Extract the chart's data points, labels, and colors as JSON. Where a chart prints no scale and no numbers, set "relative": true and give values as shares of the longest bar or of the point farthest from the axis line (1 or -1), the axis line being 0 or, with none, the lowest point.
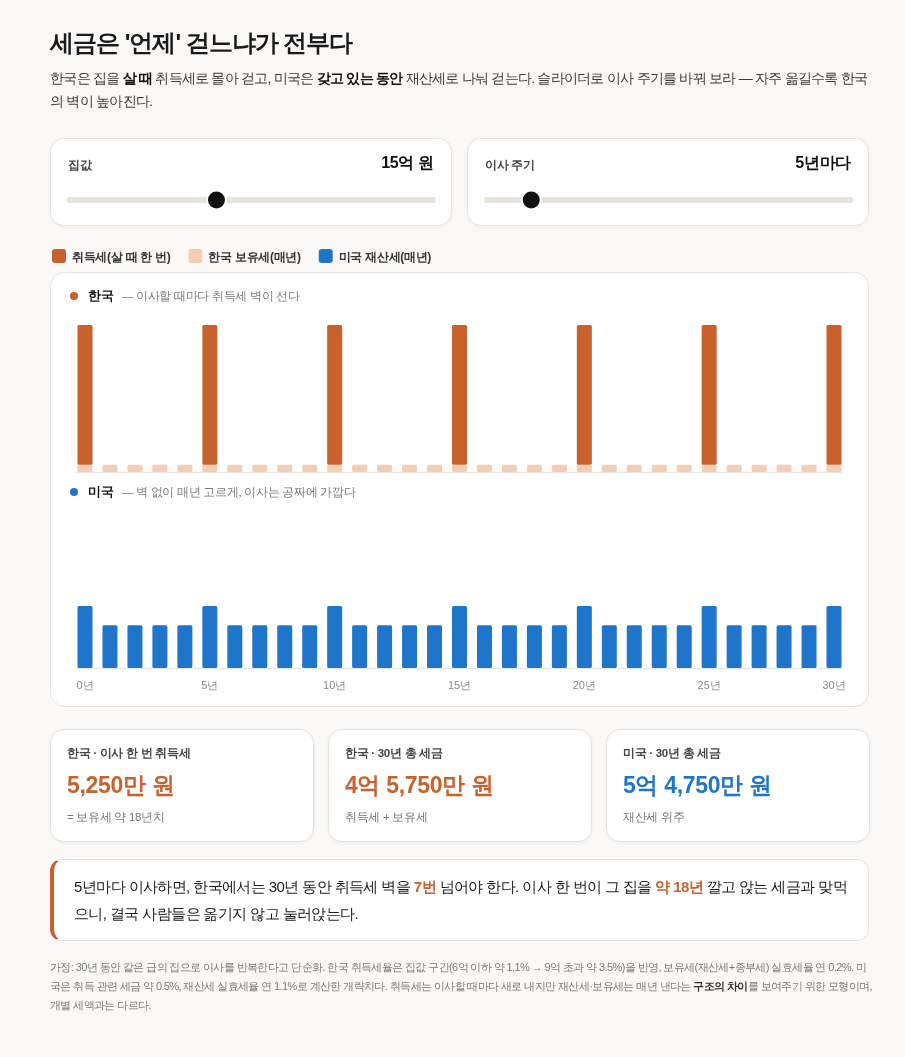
{
  "chart_data": [
    {
      "type": "other",
      "title": "세금은 '언제' 걷느냐가 전부다",
      "subtitle": "한국은 집을 **살 때** 취득세로 몰아 걷고, 미국은 **갖고 있는 동안** 재산세로 나눠 걷는다. 슬라이더로 이사 주기를 바꿔 보라 — 자주 옮길수록 한국의 벽이 높아진다.",
      "annotations": [
        "집값",
        "15억 원",
        "이사 주기",
        "5년마다"
      ]
    },
    {
      "type": "bar",
      "title": "한국",
      "subtitle": "— 이사할 때마다 취득세 벽이 선다",
      "categories": [
        null,
        null,
        null,
        null,
        null,
        null,
        null,
        null,
        null,
        null,
        null,
        null,
        null,
        null,
        null,
        null,
        null,
        null,
        null,
        null,
        null,
        null,
        null,
        null,
        null,
        null,
        null,
        null,
        null,
        null,
        null
      ],
      "stacked": true,
      "relative": true,
      "legend": "top",
      "series": [
        {
          "name": "한국 보유세(매년)",
          "color": "#f2cfb4",
          "values": [
            0.05,
            0.05,
            0.05,
            0.05,
            0.05,
            0.05,
            0.05,
            0.05,
            0.05,
            0.05,
            0.05,
            0.05,
            0.05,
            0.05,
            0.05,
            0.05,
            0.05,
            0.05,
            0.05,
            0.05,
            0.05,
            0.05,
            0.05,
            0.05,
            0.05,
            0.05,
            0.05,
            0.05,
            0.05,
            0.05,
            0.05
          ]
        },
        {
          "name": "취득세(살 때 한 번)",
          "color": "#c8612b",
          "values": [
            0.95,
            null,
            null,
            null,
            null,
            0.95,
            null,
            null,
            null,
            null,
            0.95,
            null,
            null,
            null,
            null,
            0.95,
            null,
            null,
            null,
            null,
            0.95,
            null,
            null,
            null,
            null,
            0.95,
            null,
            null,
            null,
            null,
            0.95
          ]
        }
      ]
    },
    {
      "type": "bar",
      "title": "미국",
      "subtitle": "— 벽 없이 매년 고르게, 이사는 공짜에 가깝다",
      "categories": [
        "0년",
        null,
        null,
        null,
        null,
        "5년",
        null,
        null,
        null,
        null,
        "10년",
        null,
        null,
        null,
        null,
        "15년",
        null,
        null,
        null,
        null,
        "20년",
        null,
        null,
        null,
        null,
        "25년",
        null,
        null,
        null,
        null,
        "30년"
      ],
      "relative": true,
      "legend": "top",
      "tick_labels": "x",
      "series": [
        {
          "name": "미국 재산세(매년)",
          "color": "#1f75c9",
          "values": [
            1,
            0.69,
            0.69,
            0.69,
            0.69,
            1,
            0.69,
            0.69,
            0.69,
            0.69,
            1,
            0.69,
            0.69,
            0.69,
            0.69,
            1,
            0.69,
            0.69,
            0.69,
            0.69,
            1,
            0.69,
            0.69,
            0.69,
            0.69,
            1,
            0.69,
            0.69,
            0.69,
            0.69,
            1
          ]
        }
      ]
    },
    {
      "type": "other",
      "annotations": [
        "한국 · 이사 한 번 취득세",
        "5,250만 원",
        "= 보유세 약 18년치",
        "한국 · 30년 총 세금",
        "4억 5,750만 원",
        "취득세 + 보유세",
        "미국 · 30년 총 세금",
        "5억 4,750만 원",
        "재산세 위주",
        "5년마다 이사하면, 한국에서는 30년 동안 취득세 벽을 **7번** 넘어야 한다. 이사 한 번이 그 집을 **약 18년** 깔고 앉는 세금과 맞먹으니, 결국 사람들은 옮기지 않고 눌러앉는다.",
        "가정: 30년 동안 같은 급의 집으로 이사를 반복한다고 단순화. 한국 취득세율은 집값 구간(6억 이하 약 1.1% → 9억 초과 약 3.5%)을 반영, 보유세(재산세+종부세) 실효세율 연 0.2%. 미국은 취득 관련 세금 약 0.5%, 재산세 실효세율 연 1.1%로 계산한 개략치다. 취득세는 이사할 때마다 새로 내지만 재산세·보유세는 매년 낸다는 **구조의 차이**를 보여주기 위한 모형이며, 개별 세액과는 다르다."
      ]
    }
  ]
}
